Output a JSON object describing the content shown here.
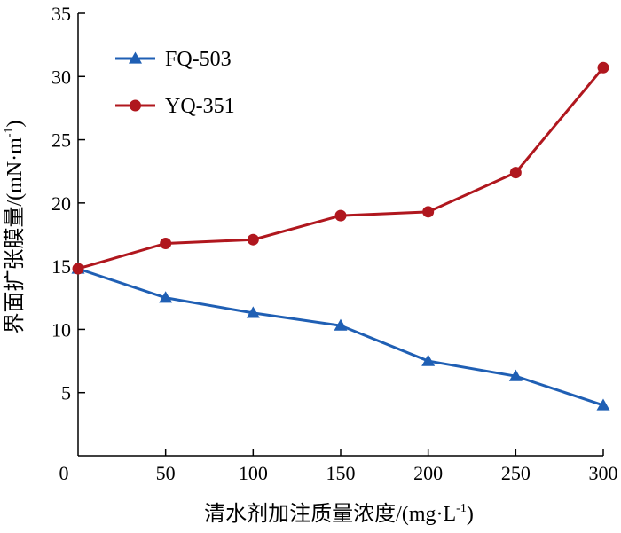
{
  "chart_data": {
    "type": "line",
    "x": [
      0,
      50,
      100,
      150,
      200,
      250,
      300
    ],
    "xlabel": "清水剂加注质量浓度/(mg·L-1)",
    "xlabel_main": "清水剂加注质量浓度/(mg·L",
    "xlabel_sup": "-1",
    "xlabel_close": ")",
    "ylabel": "界面扩张膜量/(mN·m-1)",
    "ylabel_main": "界面扩张膜量/(mN·m",
    "ylabel_sup": "-1",
    "ylabel_close": ")",
    "xlim": [
      0,
      300
    ],
    "ylim": [
      0,
      35
    ],
    "xticks": [
      0,
      50,
      100,
      150,
      200,
      250,
      300
    ],
    "yticks": [
      5,
      10,
      15,
      20,
      25,
      30,
      35
    ],
    "y_zero_label": "0",
    "grid": false,
    "legend_position": "top-left",
    "series": [
      {
        "name": "FQ-503",
        "color": "#1f5fb4",
        "marker": "triangle",
        "values": [
          14.8,
          12.5,
          11.3,
          10.3,
          7.5,
          6.3,
          4.0
        ]
      },
      {
        "name": "YQ-351",
        "color": "#b0171e",
        "marker": "circle",
        "values": [
          14.8,
          16.8,
          17.1,
          19.0,
          19.3,
          22.4,
          30.7
        ]
      }
    ]
  }
}
